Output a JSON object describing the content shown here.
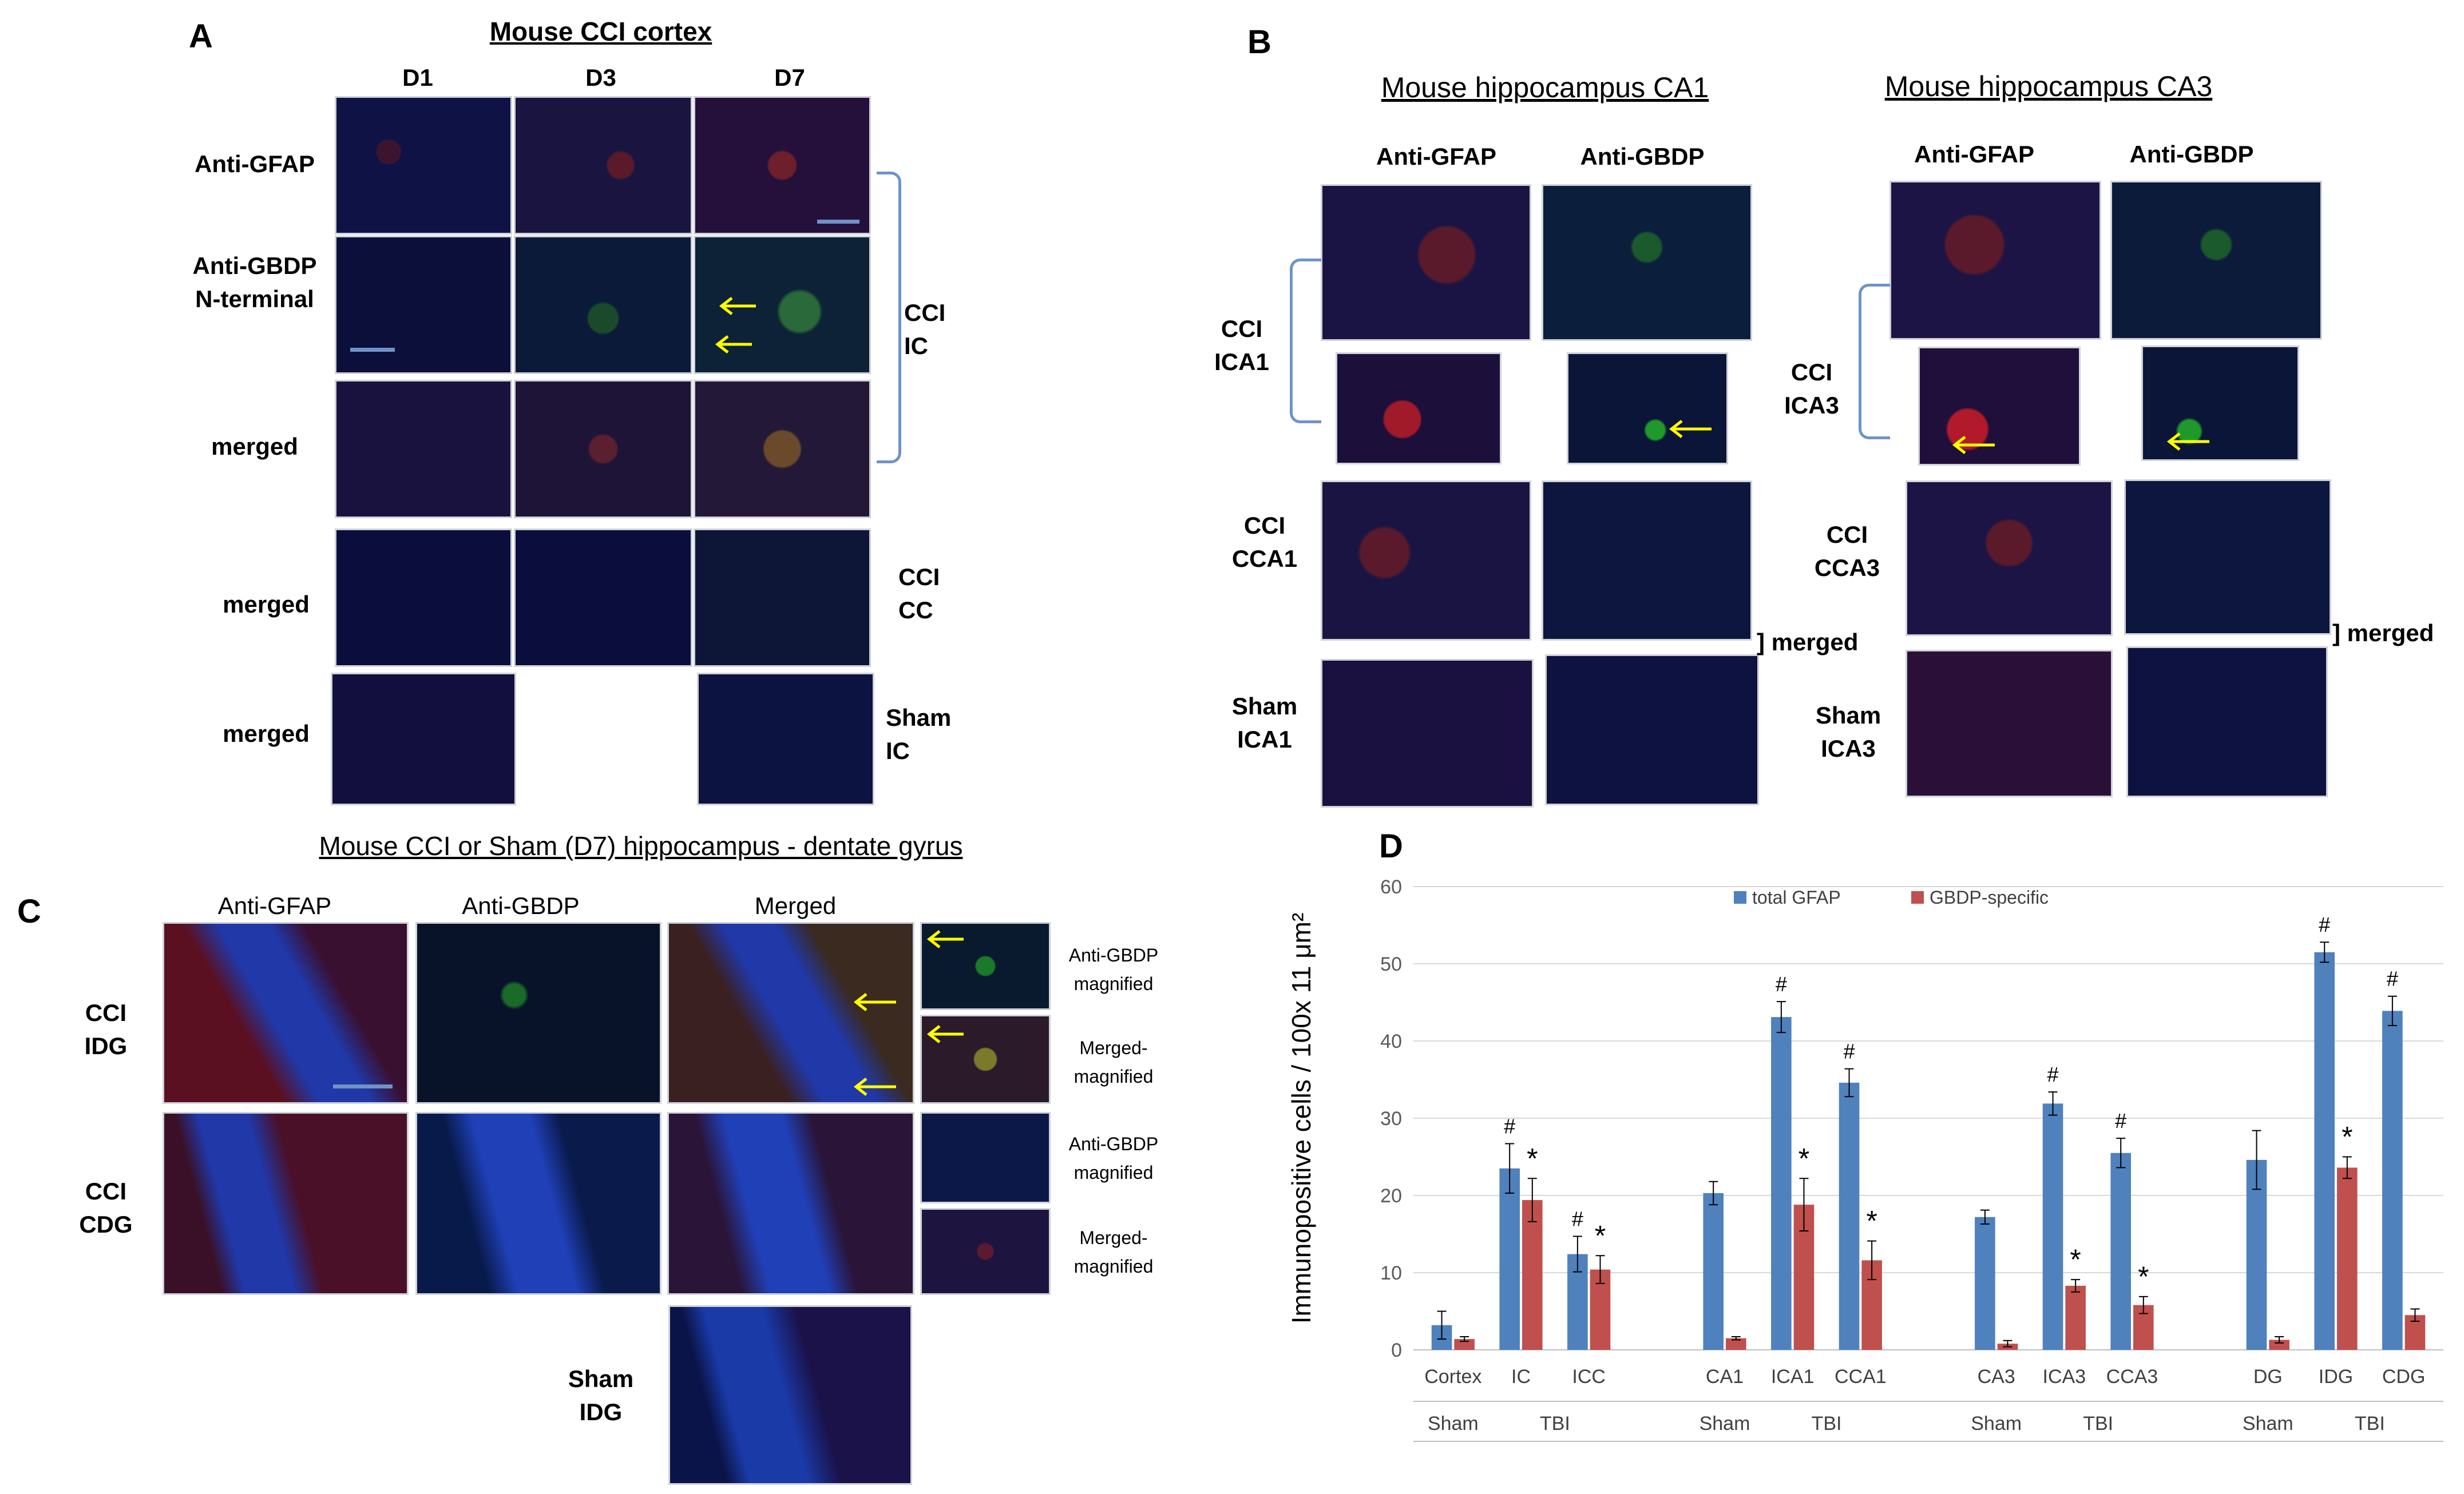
{
  "panel_a": {
    "letter": "A",
    "title": "Mouse CCI cortex",
    "columns": [
      "D1",
      "D3",
      "D7"
    ],
    "rows": [
      "Anti-GFAP",
      "Anti-GBDP\nN-terminal",
      "merged",
      "merged",
      "merged"
    ],
    "groups": [
      "CCI\nIC",
      "CCI\nCC",
      "Sham\nIC"
    ]
  },
  "panel_b": {
    "letter": "B",
    "left_title": "Mouse  hippocampus CA1",
    "right_title": "Mouse  hippocampus CA3",
    "columns": [
      "Anti-GFAP",
      "Anti-GBDP"
    ],
    "left_rows": [
      "CCI\nICA1",
      "CCI\nCCA1",
      "Sham\nICA1"
    ],
    "right_rows": [
      "CCI\nICA3",
      "CCI\nCCA3",
      "Sham\nICA3"
    ],
    "merged_label": "] merged"
  },
  "panel_c": {
    "letter": "C",
    "title": "Mouse  CCI  or Sham  (D7) hippocampus  - dentate gyrus",
    "columns": [
      "Anti-GFAP",
      "Anti-GBDP",
      "Merged"
    ],
    "rows": [
      "CCI\nIDG",
      "CCI\nCDG",
      "Sham\nIDG"
    ],
    "side_labels": [
      "Anti-GBDP\nmagnified",
      "Merged-\nmagnified",
      "Anti-GBDP\nmagnified",
      "Merged-\nmagnified"
    ]
  },
  "panel_d": {
    "letter": "D"
  },
  "colors": {
    "total_gfap": "#4f81bd",
    "gbdp_specific": "#c0504d",
    "bracket": "#6f93c7",
    "arrow": "#ffff00"
  },
  "chart_data": {
    "type": "bar",
    "ylabel": "Immunopositive cells / 100x 11 μm²",
    "ylim": [
      0,
      60
    ],
    "yticks": [
      0,
      10,
      20,
      30,
      40,
      50,
      60
    ],
    "legend_position": "top",
    "grid": true,
    "categories": [
      "Cortex",
      "IC",
      "ICC",
      "CA1",
      "ICA1",
      "CCA1",
      "CA3",
      "ICA3",
      "CCA3",
      "DG",
      "IDG",
      "CDG"
    ],
    "groups": [
      {
        "label": "Sham",
        "categories": [
          "Cortex"
        ]
      },
      {
        "label": "TBI",
        "categories": [
          "IC",
          "ICC"
        ]
      },
      {
        "label": "Sham",
        "categories": [
          "CA1"
        ]
      },
      {
        "label": "TBI",
        "categories": [
          "ICA1",
          "CCA1"
        ]
      },
      {
        "label": "Sham",
        "categories": [
          "CA3"
        ]
      },
      {
        "label": "TBI",
        "categories": [
          "ICA3",
          "CCA3"
        ]
      },
      {
        "label": "Sham",
        "categories": [
          "DG"
        ]
      },
      {
        "label": "TBI",
        "categories": [
          "IDG",
          "CDG"
        ]
      }
    ],
    "series": [
      {
        "name": "total GFAP",
        "values": [
          3.2,
          23.5,
          12.4,
          20.3,
          43.1,
          34.6,
          17.2,
          31.9,
          25.5,
          24.6,
          51.5,
          43.9
        ],
        "errors": [
          1.8,
          3.2,
          2.3,
          1.5,
          2.0,
          1.8,
          0.9,
          1.5,
          1.9,
          3.8,
          1.3,
          1.9
        ],
        "marks": [
          "",
          "#",
          "#",
          "",
          "#",
          "#",
          "",
          "#",
          "#",
          "",
          "#",
          "#"
        ]
      },
      {
        "name": "GBDP-specific",
        "values": [
          1.4,
          19.4,
          10.4,
          1.5,
          18.8,
          11.6,
          0.8,
          8.3,
          5.8,
          1.3,
          23.6,
          4.5
        ],
        "errors": [
          0.3,
          2.8,
          1.8,
          0.2,
          3.4,
          2.5,
          0.4,
          0.8,
          1.1,
          0.4,
          1.4,
          0.8
        ],
        "marks": [
          "",
          "*",
          "*",
          "",
          "*",
          "*",
          "",
          "*",
          "*",
          "",
          "*",
          ""
        ]
      }
    ]
  }
}
